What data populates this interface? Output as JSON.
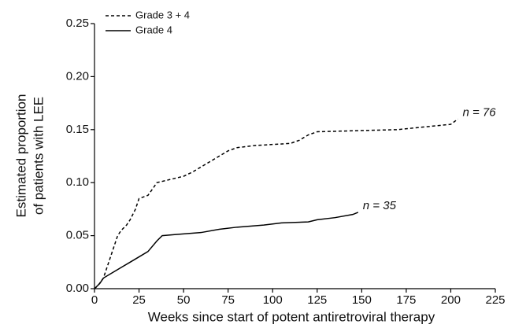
{
  "chart_data": {
    "type": "line",
    "xlabel": "Weeks since start of potent antiretroviral therapy",
    "ylabel": [
      "Estimated proportion",
      "of patients with LEE"
    ],
    "xlim": [
      0,
      225
    ],
    "xticks": [
      0,
      25,
      50,
      75,
      100,
      125,
      150,
      175,
      200,
      225
    ],
    "ylim": [
      0,
      0.25
    ],
    "yticks": [
      {
        "value": 0,
        "label": "0.00"
      },
      0.05,
      {
        "value": 0.1,
        "label": "0.10"
      },
      0.15,
      {
        "value": 0.2,
        "label": "0.20"
      },
      0.25
    ],
    "legend": "upper left",
    "series": [
      {
        "name": "Grade 3 + 4",
        "color": "#000000",
        "style": "dashed",
        "end_label": "n = 76",
        "x": [
          0,
          2,
          5,
          8,
          10,
          13,
          15,
          18,
          20,
          23,
          25,
          30,
          33,
          35,
          40,
          45,
          50,
          55,
          60,
          65,
          70,
          75,
          80,
          90,
          110,
          115,
          120,
          125,
          170,
          200,
          204
        ],
        "values": [
          0,
          0.003,
          0.01,
          0.025,
          0.035,
          0.05,
          0.055,
          0.06,
          0.065,
          0.075,
          0.085,
          0.088,
          0.095,
          0.1,
          0.102,
          0.104,
          0.106,
          0.11,
          0.115,
          0.12,
          0.125,
          0.13,
          0.133,
          0.135,
          0.137,
          0.14,
          0.145,
          0.148,
          0.15,
          0.155,
          0.16
        ]
      },
      {
        "name": "Grade 4",
        "color": "#000000",
        "style": "solid",
        "end_label": "n = 35",
        "x": [
          0,
          3,
          5,
          10,
          15,
          20,
          25,
          30,
          35,
          38,
          45,
          60,
          70,
          80,
          95,
          105,
          120,
          125,
          135,
          145,
          148
        ],
        "values": [
          0,
          0.005,
          0.01,
          0.015,
          0.02,
          0.025,
          0.03,
          0.035,
          0.045,
          0.05,
          0.051,
          0.053,
          0.056,
          0.058,
          0.06,
          0.062,
          0.063,
          0.065,
          0.067,
          0.07,
          0.072
        ]
      }
    ]
  }
}
